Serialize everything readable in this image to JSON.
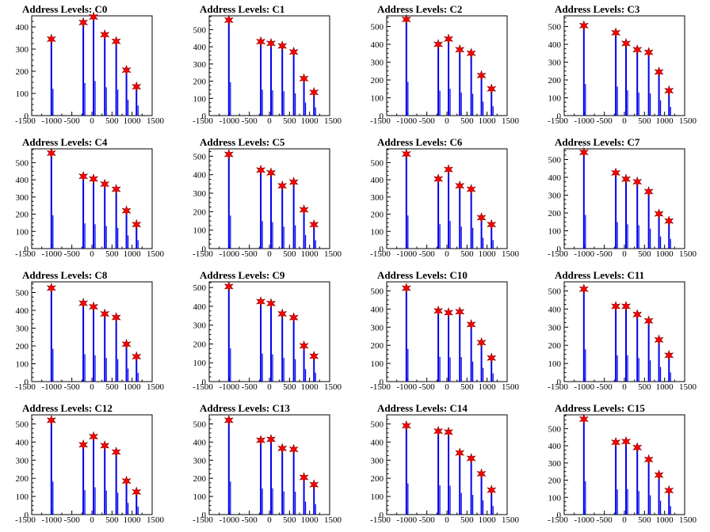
{
  "chart_data": [
    {
      "type": "bar",
      "title": "Address Levels: C0",
      "ylim": [
        0,
        450
      ],
      "yticks": [
        0,
        100,
        200,
        300,
        400
      ],
      "xlim": [
        -1500,
        1500
      ],
      "xtick_labels": [
        "-1500",
        "-1000",
        "-500",
        "0",
        "500",
        "1000",
        "1500"
      ],
      "peaks": [
        {
          "x": -1010,
          "y": 345
        },
        {
          "x": -215,
          "y": 420
        },
        {
          "x": 40,
          "y": 445
        },
        {
          "x": 320,
          "y": 365
        },
        {
          "x": 605,
          "y": 335
        },
        {
          "x": 860,
          "y": 205
        },
        {
          "x": 1110,
          "y": 130
        }
      ]
    },
    {
      "type": "bar",
      "title": "Address Levels: C1",
      "ylim": [
        0,
        580
      ],
      "yticks": [
        0,
        100,
        200,
        300,
        400,
        500
      ],
      "xlim": [
        -1500,
        1500
      ],
      "xtick_labels": [
        "-1500",
        "-1000",
        "-500",
        "0",
        "500",
        "1000",
        "1500"
      ],
      "peaks": [
        {
          "x": -1010,
          "y": 555
        },
        {
          "x": -215,
          "y": 430
        },
        {
          "x": 40,
          "y": 420
        },
        {
          "x": 320,
          "y": 405
        },
        {
          "x": 605,
          "y": 370
        },
        {
          "x": 860,
          "y": 215
        },
        {
          "x": 1110,
          "y": 135
        }
      ]
    },
    {
      "type": "bar",
      "title": "Address Levels: C2",
      "ylim": [
        0,
        560
      ],
      "yticks": [
        0,
        100,
        200,
        300,
        400,
        500
      ],
      "xlim": [
        -1500,
        1500
      ],
      "xtick_labels": [
        "-1500",
        "-1000",
        "-500",
        "0",
        "500",
        "1000",
        "1500"
      ],
      "peaks": [
        {
          "x": -1010,
          "y": 540
        },
        {
          "x": -215,
          "y": 400
        },
        {
          "x": 40,
          "y": 430
        },
        {
          "x": 320,
          "y": 370
        },
        {
          "x": 605,
          "y": 350
        },
        {
          "x": 860,
          "y": 225
        },
        {
          "x": 1110,
          "y": 150
        }
      ]
    },
    {
      "type": "bar",
      "title": "Address Levels: C3",
      "ylim": [
        0,
        560
      ],
      "yticks": [
        0,
        100,
        200,
        300,
        400,
        500
      ],
      "xlim": [
        -1500,
        1500
      ],
      "xtick_labels": [
        "-1500",
        "-1000",
        "-500",
        "0",
        "500",
        "1000",
        "1500"
      ],
      "peaks": [
        {
          "x": -1010,
          "y": 505
        },
        {
          "x": -215,
          "y": 465
        },
        {
          "x": 40,
          "y": 405
        },
        {
          "x": 320,
          "y": 370
        },
        {
          "x": 605,
          "y": 355
        },
        {
          "x": 860,
          "y": 245
        },
        {
          "x": 1110,
          "y": 140
        }
      ]
    },
    {
      "type": "bar",
      "title": "Address Levels: C4",
      "ylim": [
        0,
        580
      ],
      "yticks": [
        0,
        100,
        200,
        300,
        400,
        500
      ],
      "xlim": [
        -1500,
        1500
      ],
      "xtick_labels": [
        "-1500",
        "-1000",
        "-500",
        "0",
        "500",
        "1000",
        "1500"
      ],
      "peaks": [
        {
          "x": -1010,
          "y": 555
        },
        {
          "x": -215,
          "y": 420
        },
        {
          "x": 40,
          "y": 405
        },
        {
          "x": 320,
          "y": 375
        },
        {
          "x": 605,
          "y": 345
        },
        {
          "x": 860,
          "y": 220
        },
        {
          "x": 1110,
          "y": 140
        }
      ]
    },
    {
      "type": "bar",
      "title": "Address Levels: C5",
      "ylim": [
        0,
        540
      ],
      "yticks": [
        0,
        100,
        200,
        300,
        400,
        500
      ],
      "xlim": [
        -1500,
        1500
      ],
      "xtick_labels": [
        "-1500",
        "-1000",
        "-500",
        "0",
        "500",
        "1000",
        "1500"
      ],
      "peaks": [
        {
          "x": -1010,
          "y": 510
        },
        {
          "x": -215,
          "y": 425
        },
        {
          "x": 40,
          "y": 410
        },
        {
          "x": 320,
          "y": 340
        },
        {
          "x": 605,
          "y": 360
        },
        {
          "x": 860,
          "y": 210
        },
        {
          "x": 1110,
          "y": 130
        }
      ]
    },
    {
      "type": "bar",
      "title": "Address Levels: C6",
      "ylim": [
        0,
        580
      ],
      "yticks": [
        0,
        100,
        200,
        300,
        400,
        500
      ],
      "xlim": [
        -1500,
        1500
      ],
      "xtick_labels": [
        "-1500",
        "-1000",
        "-500",
        "0",
        "500",
        "1000",
        "1500"
      ],
      "peaks": [
        {
          "x": -1010,
          "y": 550
        },
        {
          "x": -215,
          "y": 405
        },
        {
          "x": 40,
          "y": 460
        },
        {
          "x": 320,
          "y": 365
        },
        {
          "x": 605,
          "y": 345
        },
        {
          "x": 860,
          "y": 180
        },
        {
          "x": 1110,
          "y": 140
        }
      ]
    },
    {
      "type": "bar",
      "title": "Address Levels: C7",
      "ylim": [
        0,
        560
      ],
      "yticks": [
        0,
        100,
        200,
        300,
        400,
        500
      ],
      "xlim": [
        -1500,
        1500
      ],
      "xtick_labels": [
        "-1500",
        "-1000",
        "-500",
        "0",
        "500",
        "1000",
        "1500"
      ],
      "peaks": [
        {
          "x": -1010,
          "y": 540
        },
        {
          "x": -215,
          "y": 425
        },
        {
          "x": 40,
          "y": 390
        },
        {
          "x": 320,
          "y": 375
        },
        {
          "x": 605,
          "y": 320
        },
        {
          "x": 860,
          "y": 195
        },
        {
          "x": 1110,
          "y": 155
        }
      ]
    },
    {
      "type": "bar",
      "title": "Address Levels: C8",
      "ylim": [
        0,
        560
      ],
      "yticks": [
        0,
        100,
        200,
        300,
        400,
        500
      ],
      "xlim": [
        -1500,
        1500
      ],
      "xtick_labels": [
        "-1500",
        "-1000",
        "-500",
        "0",
        "500",
        "1000",
        "1500"
      ],
      "peaks": [
        {
          "x": -1010,
          "y": 525
        },
        {
          "x": -215,
          "y": 440
        },
        {
          "x": 40,
          "y": 420
        },
        {
          "x": 320,
          "y": 380
        },
        {
          "x": 605,
          "y": 360
        },
        {
          "x": 860,
          "y": 210
        },
        {
          "x": 1110,
          "y": 140
        }
      ]
    },
    {
      "type": "bar",
      "title": "Address Levels: C9",
      "ylim": [
        0,
        530
      ],
      "yticks": [
        0,
        100,
        200,
        300,
        400,
        500
      ],
      "xlim": [
        -1500,
        1500
      ],
      "xtick_labels": [
        "-1500",
        "-1000",
        "-500",
        "0",
        "500",
        "1000",
        "1500"
      ],
      "peaks": [
        {
          "x": -1010,
          "y": 505
        },
        {
          "x": -215,
          "y": 425
        },
        {
          "x": 40,
          "y": 415
        },
        {
          "x": 320,
          "y": 360
        },
        {
          "x": 605,
          "y": 340
        },
        {
          "x": 860,
          "y": 190
        },
        {
          "x": 1110,
          "y": 135
        }
      ]
    },
    {
      "type": "bar",
      "title": "Address Levels: C10",
      "ylim": [
        0,
        550
      ],
      "yticks": [
        0,
        100,
        200,
        300,
        400,
        500
      ],
      "xlim": [
        -1500,
        1500
      ],
      "xtick_labels": [
        "-1500",
        "-1000",
        "-500",
        "0",
        "500",
        "1000",
        "1500"
      ],
      "peaks": [
        {
          "x": -1010,
          "y": 515
        },
        {
          "x": -215,
          "y": 390
        },
        {
          "x": 40,
          "y": 380
        },
        {
          "x": 320,
          "y": 385
        },
        {
          "x": 605,
          "y": 315
        },
        {
          "x": 860,
          "y": 215
        },
        {
          "x": 1110,
          "y": 130
        }
      ]
    },
    {
      "type": "bar",
      "title": "Address Levels: C11",
      "ylim": [
        0,
        550
      ],
      "yticks": [
        0,
        100,
        200,
        300,
        400,
        500
      ],
      "xlim": [
        -1500,
        1500
      ],
      "xtick_labels": [
        "-1500",
        "-1000",
        "-500",
        "0",
        "500",
        "1000",
        "1500"
      ],
      "peaks": [
        {
          "x": -1010,
          "y": 510
        },
        {
          "x": -215,
          "y": 415
        },
        {
          "x": 40,
          "y": 415
        },
        {
          "x": 320,
          "y": 370
        },
        {
          "x": 605,
          "y": 335
        },
        {
          "x": 860,
          "y": 230
        },
        {
          "x": 1110,
          "y": 145
        }
      ]
    },
    {
      "type": "bar",
      "title": "Address Levels: C12",
      "ylim": [
        0,
        550
      ],
      "yticks": [
        0,
        100,
        200,
        300,
        400,
        500
      ],
      "xlim": [
        -1500,
        1500
      ],
      "xtick_labels": [
        "-1500",
        "-1000",
        "-500",
        "0",
        "500",
        "1000",
        "1500"
      ],
      "peaks": [
        {
          "x": -1010,
          "y": 520
        },
        {
          "x": -215,
          "y": 385
        },
        {
          "x": 40,
          "y": 430
        },
        {
          "x": 320,
          "y": 380
        },
        {
          "x": 605,
          "y": 345
        },
        {
          "x": 860,
          "y": 185
        },
        {
          "x": 1110,
          "y": 125
        }
      ]
    },
    {
      "type": "bar",
      "title": "Address Levels: C13",
      "ylim": [
        0,
        550
      ],
      "yticks": [
        0,
        100,
        200,
        300,
        400,
        500
      ],
      "xlim": [
        -1500,
        1500
      ],
      "xtick_labels": [
        "-1500",
        "-1000",
        "-500",
        "0",
        "500",
        "1000",
        "1500"
      ],
      "peaks": [
        {
          "x": -1010,
          "y": 520
        },
        {
          "x": -215,
          "y": 410
        },
        {
          "x": 40,
          "y": 415
        },
        {
          "x": 320,
          "y": 365
        },
        {
          "x": 605,
          "y": 360
        },
        {
          "x": 860,
          "y": 205
        },
        {
          "x": 1110,
          "y": 165
        }
      ]
    },
    {
      "type": "bar",
      "title": "Address Levels: C14",
      "ylim": [
        0,
        550
      ],
      "yticks": [
        0,
        100,
        200,
        300,
        400,
        500
      ],
      "xlim": [
        -1500,
        1500
      ],
      "xtick_labels": [
        "-1500",
        "-1000",
        "-500",
        "0",
        "500",
        "1000",
        "1500"
      ],
      "peaks": [
        {
          "x": -1010,
          "y": 490
        },
        {
          "x": -215,
          "y": 460
        },
        {
          "x": 40,
          "y": 455
        },
        {
          "x": 320,
          "y": 340
        },
        {
          "x": 605,
          "y": 310
        },
        {
          "x": 860,
          "y": 225
        },
        {
          "x": 1110,
          "y": 135
        }
      ]
    },
    {
      "type": "bar",
      "title": "Address Levels: C15",
      "ylim": [
        0,
        580
      ],
      "yticks": [
        0,
        100,
        200,
        300,
        400,
        500
      ],
      "xlim": [
        -1500,
        1500
      ],
      "xtick_labels": [
        "-1500",
        "-1000",
        "-500",
        "0",
        "500",
        "1000",
        "1500"
      ],
      "peaks": [
        {
          "x": -1010,
          "y": 555
        },
        {
          "x": -215,
          "y": 420
        },
        {
          "x": 40,
          "y": 425
        },
        {
          "x": 320,
          "y": 390
        },
        {
          "x": 605,
          "y": 320
        },
        {
          "x": 860,
          "y": 230
        },
        {
          "x": 1110,
          "y": 140
        }
      ]
    }
  ],
  "colors": {
    "bar": "#0000ee",
    "marker": "#ff0000",
    "marker_stroke": "#7a0000",
    "axis": "#000000"
  }
}
